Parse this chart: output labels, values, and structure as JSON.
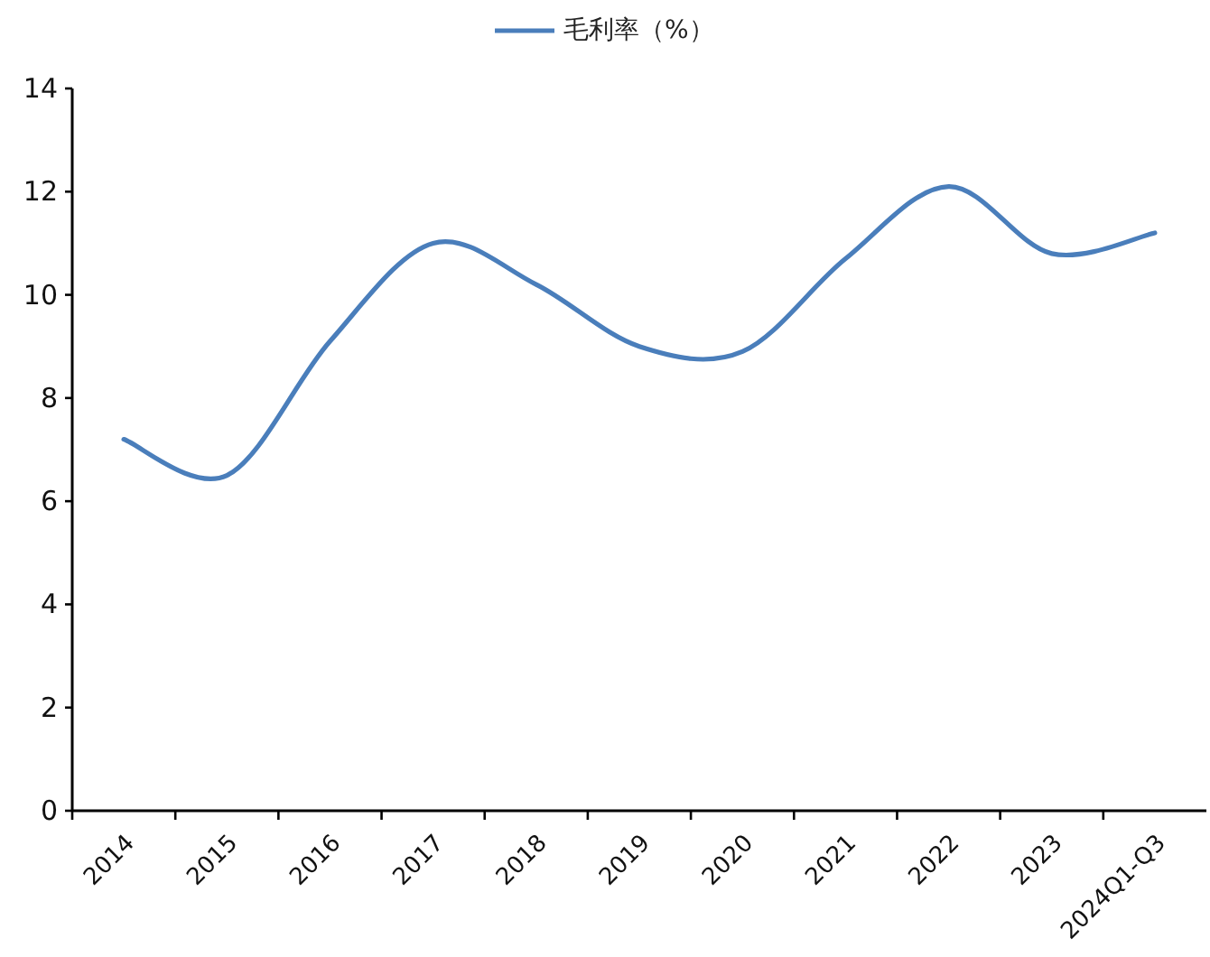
{
  "chart_data": {
    "type": "line",
    "categories": [
      "2014",
      "2015",
      "2016",
      "2017",
      "2018",
      "2019",
      "2020",
      "2021",
      "2022",
      "2023",
      "2024Q1-Q3"
    ],
    "series": [
      {
        "name": "毛利率（%）",
        "color": "#4a7ebb",
        "values": [
          7.2,
          6.5,
          9.1,
          11.0,
          10.2,
          9.0,
          8.9,
          10.7,
          12.1,
          10.8,
          11.2
        ]
      }
    ],
    "ylim": [
      0,
      14
    ],
    "yticks": [
      0,
      2,
      4,
      6,
      8,
      10,
      12,
      14
    ],
    "legend": "top"
  }
}
